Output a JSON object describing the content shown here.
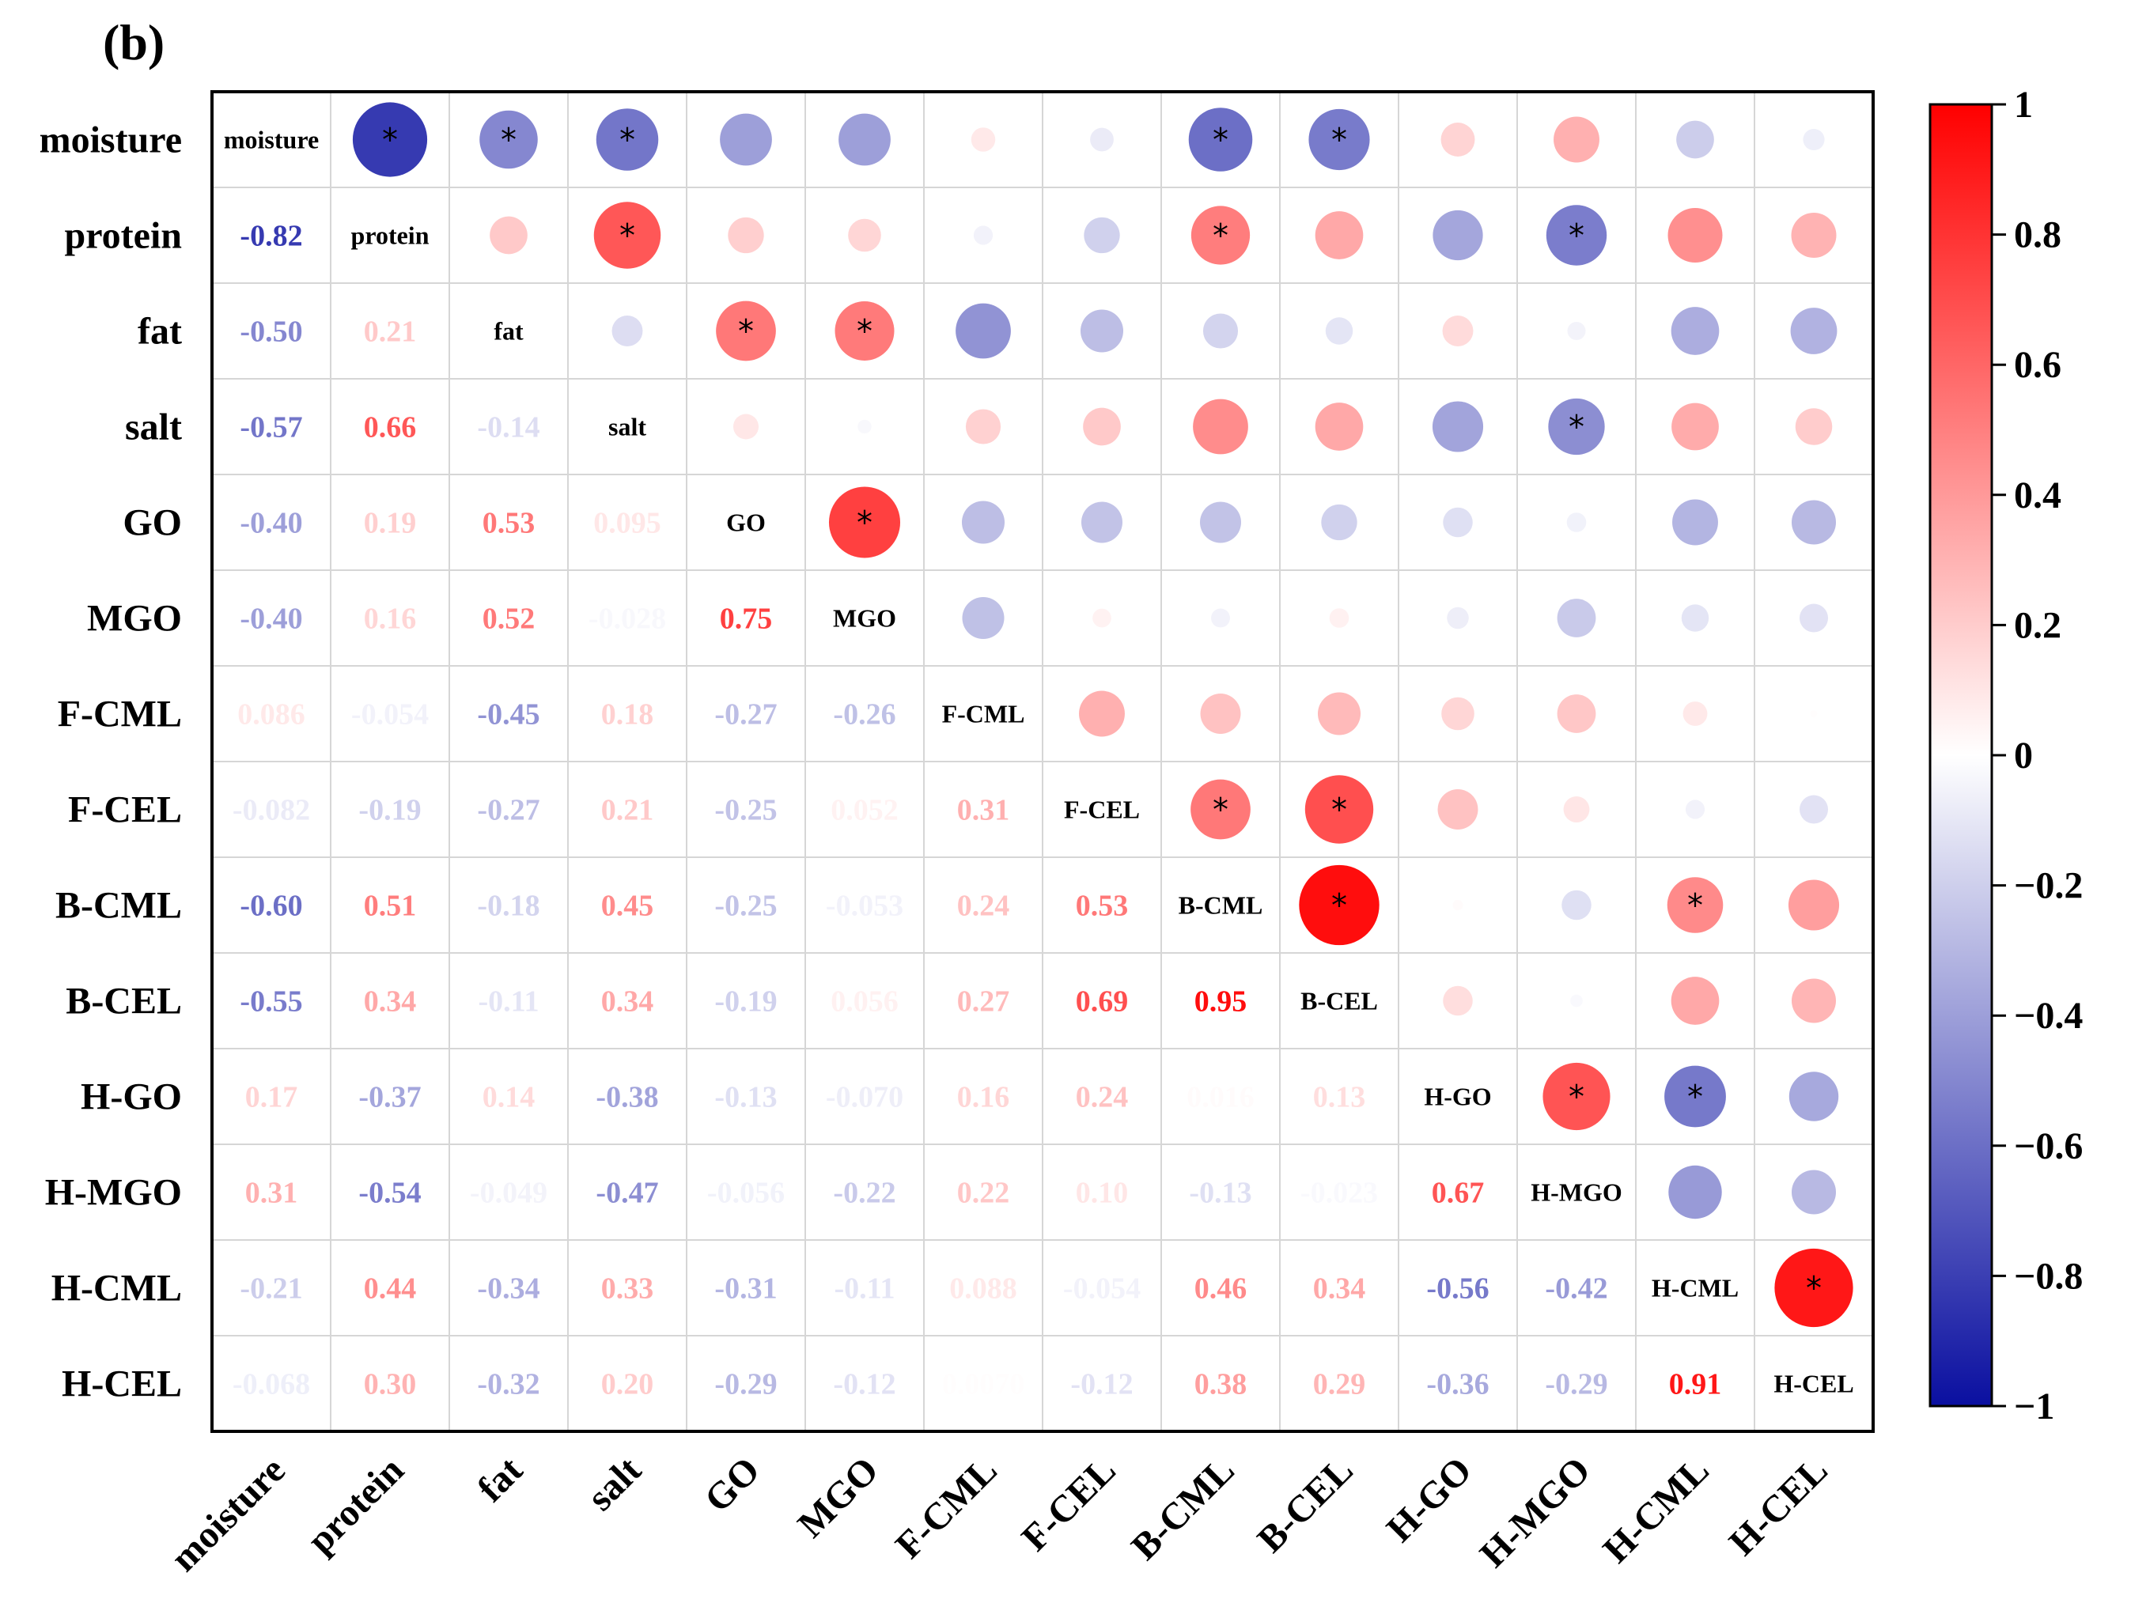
{
  "panel_label": "(b)",
  "chart_data": {
    "type": "heatmap",
    "subtype": "correlation-matrix",
    "lower_triangle": "coefficient text",
    "upper_triangle": "circle sized and colored by coefficient",
    "diagonal": "variable name",
    "significance_marker": "*",
    "variables": [
      "moisture",
      "protein",
      "fat",
      "salt",
      "GO",
      "MGO",
      "F-CML",
      "F-CEL",
      "B-CML",
      "B-CEL",
      "H-GO",
      "H-MGO",
      "H-CML",
      "H-CEL"
    ],
    "labels": [
      [
        null,
        null,
        null,
        null,
        null,
        null,
        null,
        null,
        null,
        null,
        null,
        null,
        null,
        null
      ],
      [
        "-0.82",
        null,
        null,
        null,
        null,
        null,
        null,
        null,
        null,
        null,
        null,
        null,
        null,
        null
      ],
      [
        "-0.50",
        "0.21",
        null,
        null,
        null,
        null,
        null,
        null,
        null,
        null,
        null,
        null,
        null,
        null
      ],
      [
        "-0.57",
        "0.66",
        "-0.14",
        null,
        null,
        null,
        null,
        null,
        null,
        null,
        null,
        null,
        null,
        null
      ],
      [
        "-0.40",
        "0.19",
        "0.53",
        "0.095",
        null,
        null,
        null,
        null,
        null,
        null,
        null,
        null,
        null,
        null
      ],
      [
        "-0.40",
        "0.16",
        "0.52",
        "-0.028",
        "0.75",
        null,
        null,
        null,
        null,
        null,
        null,
        null,
        null,
        null
      ],
      [
        "0.086",
        "-0.054",
        "-0.45",
        "0.18",
        "-0.27",
        "-0.26",
        null,
        null,
        null,
        null,
        null,
        null,
        null,
        null
      ],
      [
        "-0.082",
        "-0.19",
        "-0.27",
        "0.21",
        "-0.25",
        "0.052",
        "0.31",
        null,
        null,
        null,
        null,
        null,
        null,
        null
      ],
      [
        "-0.60",
        "0.51",
        "-0.18",
        "0.45",
        "-0.25",
        "-0.053",
        "0.24",
        "0.53",
        null,
        null,
        null,
        null,
        null,
        null
      ],
      [
        "-0.55",
        "0.34",
        "-0.11",
        "0.34",
        "-0.19",
        "0.056",
        "0.27",
        "0.69",
        "0.95",
        null,
        null,
        null,
        null,
        null
      ],
      [
        "0.17",
        "-0.37",
        "0.14",
        "-0.38",
        "-0.13",
        "-0.070",
        "0.16",
        "0.24",
        "0.016",
        "0.13",
        null,
        null,
        null,
        null
      ],
      [
        "0.31",
        "-0.54",
        "-0.049",
        "-0.47",
        "-0.056",
        "-0.22",
        "0.22",
        "0.10",
        "-0.13",
        "-0.023",
        "0.67",
        null,
        null,
        null
      ],
      [
        "-0.21",
        "0.44",
        "-0.34",
        "0.33",
        "-0.31",
        "-0.11",
        "0.088",
        "-0.054",
        "0.46",
        "0.34",
        "-0.56",
        "-0.42",
        null,
        null
      ],
      [
        "-0.068",
        "0.30",
        "-0.32",
        "0.20",
        "-0.29",
        "-0.12",
        "0.0070",
        "-0.12",
        "0.38",
        "0.29",
        "-0.36",
        "-0.29",
        "0.91",
        null
      ]
    ],
    "significant": [
      [
        0,
        1
      ],
      [
        0,
        2
      ],
      [
        0,
        3
      ],
      [
        0,
        8
      ],
      [
        0,
        9
      ],
      [
        1,
        3
      ],
      [
        1,
        8
      ],
      [
        1,
        11
      ],
      [
        2,
        4
      ],
      [
        2,
        5
      ],
      [
        3,
        11
      ],
      [
        4,
        5
      ],
      [
        7,
        8
      ],
      [
        7,
        9
      ],
      [
        8,
        9
      ],
      [
        8,
        12
      ],
      [
        10,
        11
      ],
      [
        10,
        12
      ],
      [
        12,
        13
      ]
    ],
    "colorbar": {
      "range": [
        -1,
        1
      ],
      "ticks": [
        1,
        0.8,
        0.6,
        0.4,
        0.2,
        0,
        -0.2,
        -0.4,
        -0.6,
        -0.8,
        -1
      ],
      "tick_labels": [
        "1",
        "0.8",
        "0.6",
        "0.4",
        "0.2",
        "0",
        "−0.2",
        "−0.4",
        "−0.6",
        "−0.8",
        "−1"
      ],
      "low_color": "#0a0fa0",
      "mid_color": "#ffffff",
      "high_color": "#ff0000"
    }
  }
}
